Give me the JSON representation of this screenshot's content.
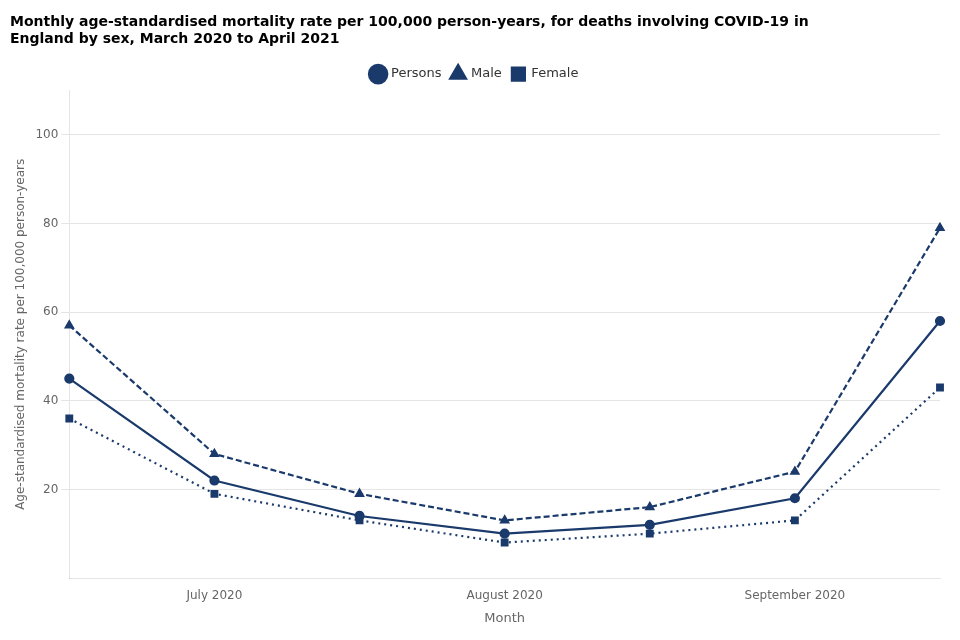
{
  "chart_data": {
    "type": "line",
    "title": "Monthly age-standardised mortality rate per 100,000 person-years, for deaths involving COVID-19 in\nEngland by sex, March 2020 to April 2021",
    "xlabel": "Month",
    "ylabel": "Age-standardised mortality rate per 100,000 person-years",
    "categories": [
      null,
      "July 2020",
      null,
      "August 2020",
      null,
      "September 2020",
      null
    ],
    "series": [
      {
        "name": "Persons",
        "color": "#1a3a6b",
        "values": [
          45,
          22,
          14,
          10,
          12,
          18,
          58
        ],
        "line_style": "solid",
        "marker": "circle"
      },
      {
        "name": "Male",
        "color": "#1a3a6b",
        "values": [
          57,
          28,
          19,
          13,
          16,
          24,
          79
        ],
        "line_style": "dashed",
        "marker": "triangle"
      },
      {
        "name": "Female",
        "color": "#1a3a6b",
        "values": [
          36,
          19,
          13,
          8,
          10,
          13,
          43
        ],
        "line_style": "dotted",
        "marker": "square"
      }
    ],
    "ylim": [
      0,
      110
    ],
    "yticks": [
      20,
      40,
      60,
      80,
      100
    ],
    "grid": "y",
    "legend": "top"
  }
}
